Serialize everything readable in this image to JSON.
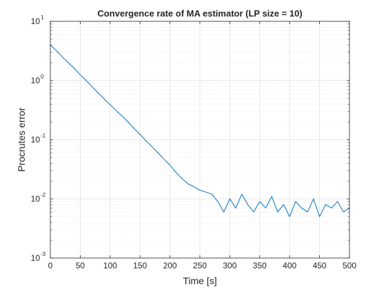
{
  "chart_data": {
    "type": "line",
    "title": "Convergence rate of MA estimator (LP size = 10)",
    "xlabel": "Time [s]",
    "ylabel": "Procrutes error",
    "xlim": [
      0,
      500
    ],
    "ylim": [
      0.001,
      10
    ],
    "yscale": "log",
    "grid": true,
    "minor_grid": true,
    "x_ticks": [
      0,
      50,
      100,
      150,
      200,
      250,
      300,
      350,
      400,
      450,
      500
    ],
    "x_tick_labels": [
      "0",
      "50",
      "100",
      "150",
      "200",
      "250",
      "300",
      "350",
      "400",
      "450",
      "500"
    ],
    "y_ticks": [
      0.001,
      0.01,
      0.1,
      1,
      10
    ],
    "y_tick_labels": [
      {
        "base": "10",
        "exp": "-3"
      },
      {
        "base": "10",
        "exp": "-2"
      },
      {
        "base": "10",
        "exp": "-1"
      },
      {
        "base": "10",
        "exp": "0"
      },
      {
        "base": "10",
        "exp": "1"
      }
    ],
    "series": [
      {
        "color": "#0072BD",
        "x": [
          0,
          10,
          20,
          30,
          40,
          50,
          60,
          70,
          80,
          90,
          100,
          110,
          120,
          130,
          140,
          150,
          160,
          170,
          180,
          190,
          200,
          210,
          220,
          230,
          240,
          250,
          260,
          270,
          280,
          290,
          300,
          310,
          320,
          330,
          340,
          350,
          360,
          370,
          380,
          390,
          400,
          410,
          420,
          430,
          440,
          450,
          460,
          470,
          480,
          490,
          500
        ],
        "y": [
          4.0,
          3.2,
          2.5,
          2.0,
          1.6,
          1.25,
          1.0,
          0.78,
          0.62,
          0.49,
          0.39,
          0.31,
          0.25,
          0.2,
          0.155,
          0.122,
          0.096,
          0.076,
          0.06,
          0.047,
          0.037,
          0.028,
          0.022,
          0.018,
          0.016,
          0.014,
          0.013,
          0.012,
          0.009,
          0.006,
          0.01,
          0.007,
          0.012,
          0.008,
          0.006,
          0.009,
          0.007,
          0.011,
          0.006,
          0.008,
          0.005,
          0.009,
          0.007,
          0.006,
          0.01,
          0.005,
          0.008,
          0.007,
          0.009,
          0.006,
          0.007
        ]
      }
    ]
  }
}
